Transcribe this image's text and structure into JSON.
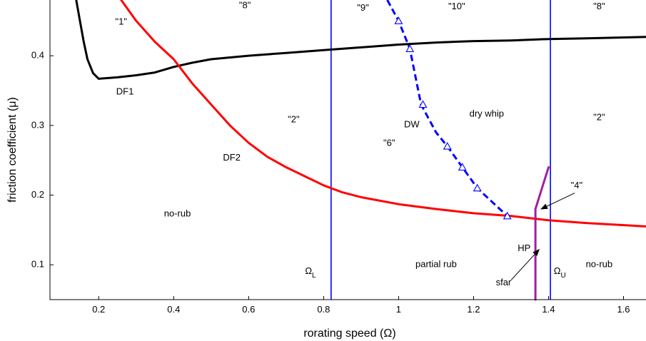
{
  "chart_data": {
    "type": "line",
    "title": "",
    "xlabel": "rorating speed (Ω)",
    "ylabel": "friction coefficient (μ)",
    "xlim": [
      0.07,
      1.66
    ],
    "ylim": [
      0.05,
      0.48
    ],
    "x_ticks": [
      0.2,
      0.4,
      0.6,
      0.8,
      1,
      1.2,
      1.4,
      1.6
    ],
    "x_tick_labels": [
      "0.2",
      "0.4",
      "0.6",
      "0.8",
      "1",
      "1.2",
      "1.4",
      "1.6"
    ],
    "y_ticks": [
      0.1,
      0.2,
      0.3,
      0.4
    ],
    "y_tick_labels": [
      "0.1",
      "0.2",
      "0.3",
      "0.4"
    ],
    "grid": false,
    "series": [
      {
        "key": "df1",
        "color": "#000000",
        "style": "solid",
        "points": [
          [
            0.14,
            0.48
          ],
          [
            0.15,
            0.45
          ],
          [
            0.16,
            0.42
          ],
          [
            0.17,
            0.395
          ],
          [
            0.185,
            0.375
          ],
          [
            0.2,
            0.367
          ],
          [
            0.25,
            0.369
          ],
          [
            0.3,
            0.372
          ],
          [
            0.35,
            0.376
          ],
          [
            0.4,
            0.384
          ],
          [
            0.45,
            0.39
          ],
          [
            0.5,
            0.395
          ],
          [
            0.6,
            0.4
          ],
          [
            0.7,
            0.404
          ],
          [
            0.8,
            0.408
          ],
          [
            0.9,
            0.412
          ],
          [
            1.0,
            0.416
          ],
          [
            1.1,
            0.419
          ],
          [
            1.2,
            0.421
          ],
          [
            1.3,
            0.422
          ],
          [
            1.4,
            0.424
          ],
          [
            1.5,
            0.425
          ],
          [
            1.66,
            0.427
          ]
        ]
      },
      {
        "key": "df2",
        "color": "#ff0000",
        "style": "solid",
        "points": [
          [
            0.26,
            0.48
          ],
          [
            0.3,
            0.45
          ],
          [
            0.35,
            0.42
          ],
          [
            0.4,
            0.395
          ],
          [
            0.45,
            0.36
          ],
          [
            0.5,
            0.33
          ],
          [
            0.55,
            0.3
          ],
          [
            0.6,
            0.275
          ],
          [
            0.65,
            0.255
          ],
          [
            0.7,
            0.24
          ],
          [
            0.75,
            0.227
          ],
          [
            0.8,
            0.214
          ],
          [
            0.85,
            0.204
          ],
          [
            0.9,
            0.197
          ],
          [
            1.0,
            0.187
          ],
          [
            1.1,
            0.18
          ],
          [
            1.2,
            0.174
          ],
          [
            1.3,
            0.17
          ],
          [
            1.4,
            0.164
          ],
          [
            1.5,
            0.16
          ],
          [
            1.66,
            0.155
          ]
        ]
      },
      {
        "key": "dw",
        "color": "#0000ff",
        "style": "dashed",
        "points": [
          [
            0.97,
            0.48
          ],
          [
            1.0,
            0.45
          ],
          [
            1.03,
            0.41
          ],
          [
            1.06,
            0.33
          ],
          [
            1.1,
            0.29
          ],
          [
            1.13,
            0.27
          ],
          [
            1.17,
            0.24
          ],
          [
            1.21,
            0.21
          ],
          [
            1.25,
            0.19
          ],
          [
            1.29,
            0.17
          ]
        ]
      },
      {
        "key": "hp",
        "color": "#a020a0",
        "style": "solid",
        "points": [
          [
            1.365,
            0.05
          ],
          [
            1.365,
            0.18
          ],
          [
            1.4,
            0.24
          ]
        ]
      }
    ],
    "markers": {
      "key": "dw_markers",
      "shape": "triangle",
      "color": "#0000ff",
      "points": [
        [
          1.0,
          0.45
        ],
        [
          1.03,
          0.41
        ],
        [
          1.065,
          0.33
        ],
        [
          1.13,
          0.27
        ],
        [
          1.17,
          0.24
        ],
        [
          1.21,
          0.21
        ],
        [
          1.29,
          0.17
        ]
      ]
    },
    "vlines": [
      {
        "key": "omega_l",
        "x": 0.82,
        "color": "#0000ff"
      },
      {
        "key": "omega_u",
        "x": 1.405,
        "color": "#0000ff"
      }
    ],
    "annotations": [
      {
        "key": "r1",
        "text": "\"1\"",
        "x": 0.26,
        "y": 0.448
      },
      {
        "key": "r8a",
        "text": "\"8\"",
        "x": 0.59,
        "y": 0.472
      },
      {
        "key": "r9",
        "text": "\"9\"",
        "x": 0.905,
        "y": 0.468
      },
      {
        "key": "r10",
        "text": "\"10\"",
        "x": 1.155,
        "y": 0.47
      },
      {
        "key": "r8b",
        "text": "\"8\"",
        "x": 1.535,
        "y": 0.47
      },
      {
        "key": "df1",
        "text": "DF1",
        "x": 0.27,
        "y": 0.348
      },
      {
        "key": "r2a",
        "text": "\"2\"",
        "x": 0.72,
        "y": 0.308
      },
      {
        "key": "dw",
        "text": "DW",
        "x": 1.035,
        "y": 0.301
      },
      {
        "key": "drywhip",
        "text": "dry whip",
        "x": 1.235,
        "y": 0.316
      },
      {
        "key": "r2b",
        "text": "\"2\"",
        "x": 1.535,
        "y": 0.311
      },
      {
        "key": "r6",
        "text": "\"6\"",
        "x": 0.975,
        "y": 0.274
      },
      {
        "key": "df2",
        "text": "DF2",
        "x": 0.555,
        "y": 0.253
      },
      {
        "key": "r4",
        "text": "\"4\"",
        "x": 1.475,
        "y": 0.213
      },
      {
        "key": "norub1",
        "text": "no-rub",
        "x": 0.41,
        "y": 0.173
      },
      {
        "key": "hp",
        "text": "HP",
        "x": 1.335,
        "y": 0.123
      },
      {
        "key": "partialrub",
        "text": "partial rub",
        "x": 1.1,
        "y": 0.1
      },
      {
        "key": "sfar",
        "text": "sfar",
        "x": 1.28,
        "y": 0.074
      },
      {
        "key": "norub2",
        "text": "no-rub",
        "x": 1.535,
        "y": 0.1
      }
    ],
    "subscript_labels": [
      {
        "key": "omega_l_label",
        "text": "Ω",
        "sub": "L",
        "x": 0.765,
        "y": 0.09
      },
      {
        "key": "omega_u_label",
        "text": "Ω",
        "sub": "U",
        "x": 1.43,
        "y": 0.09
      }
    ],
    "arrows": [
      {
        "key": "arrow-4",
        "from": [
          1.47,
          0.203
        ],
        "to": [
          1.38,
          0.18
        ]
      },
      {
        "key": "arrow-sfar",
        "from": [
          1.3,
          0.078
        ],
        "to": [
          1.375,
          0.122
        ]
      }
    ]
  }
}
